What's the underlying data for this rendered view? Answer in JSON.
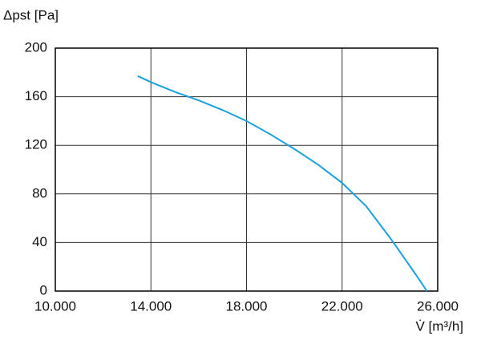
{
  "chart_data": {
    "type": "line",
    "y_label": "Δpst [Pa]",
    "x_label": "V̇ [m³/h]",
    "x": [
      13450,
      14000,
      15000,
      16000,
      17000,
      18000,
      19000,
      20000,
      21000,
      22000,
      23000,
      24000,
      25000,
      25550
    ],
    "values": [
      177,
      172,
      164,
      157,
      149,
      140,
      129,
      117,
      104,
      89,
      70,
      44,
      16,
      0
    ],
    "color": "#1aa0dc",
    "xlim": [
      10000,
      26000
    ],
    "xticks": [
      {
        "value": 10000,
        "label": "10.000"
      },
      {
        "value": 14000,
        "label": "14.000"
      },
      {
        "value": 18000,
        "label": "18.000"
      },
      {
        "value": 22000,
        "label": "22.000"
      },
      {
        "value": 26000,
        "label": "26.000"
      }
    ],
    "ylim": [
      0,
      200
    ],
    "yticks": [
      0,
      40,
      80,
      120,
      160,
      200
    ],
    "grid": true
  }
}
